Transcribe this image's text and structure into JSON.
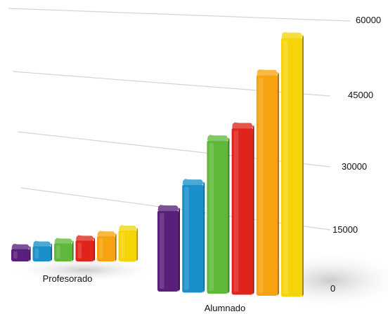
{
  "chart_data": {
    "type": "bar",
    "style": "3d",
    "categories": [
      "Profesorado",
      "Alumnado"
    ],
    "series": [
      {
        "color": "#5a1f7a",
        "values": [
          900,
          18000
        ]
      },
      {
        "color": "#1a8fc9",
        "values": [
          1100,
          24000
        ]
      },
      {
        "color": "#5fb83a",
        "values": [
          1300,
          34000
        ]
      },
      {
        "color": "#e0241b",
        "values": [
          1500,
          37000
        ]
      },
      {
        "color": "#f7a30f",
        "values": [
          1800,
          49000
        ]
      },
      {
        "color": "#f5d40a",
        "values": [
          2200,
          57500
        ]
      }
    ],
    "y_ticks": [
      "0",
      "15000",
      "30000",
      "45000",
      "60000"
    ],
    "y_tick_values": [
      0,
      15000,
      30000,
      45000,
      60000
    ],
    "ylim": [
      0,
      60000
    ],
    "grid": true,
    "legend": "none",
    "title": "",
    "xlabel": "",
    "ylabel": ""
  }
}
